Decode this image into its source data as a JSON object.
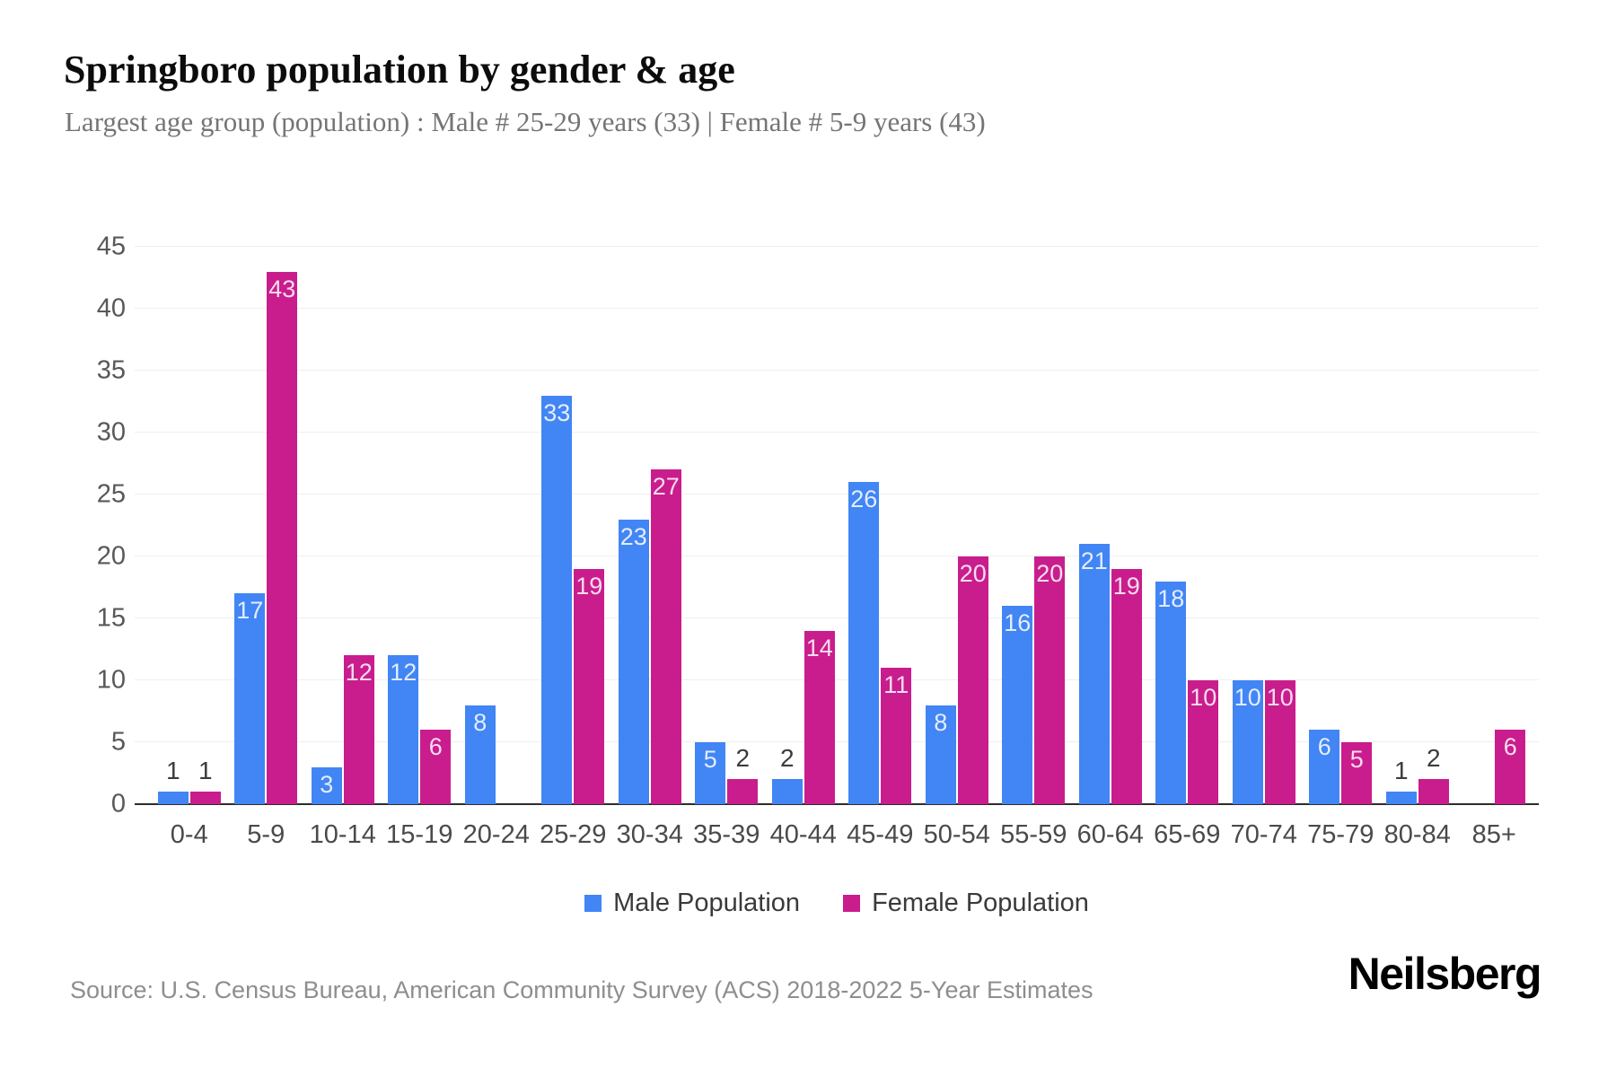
{
  "title": "Springboro population by gender & age",
  "subtitle": "Largest age group (population) : Male # 25-29 years (33) | Female # 5-9 years (43)",
  "chart_data": {
    "type": "bar",
    "title": "Springboro population by gender & age",
    "categories": [
      "0-4",
      "5-9",
      "10-14",
      "15-19",
      "20-24",
      "25-29",
      "30-34",
      "35-39",
      "40-44",
      "45-49",
      "50-54",
      "55-59",
      "60-64",
      "65-69",
      "70-74",
      "75-79",
      "80-84",
      "85+"
    ],
    "series": [
      {
        "name": "Male Population",
        "color": "#4285f4",
        "values": [
          1,
          17,
          3,
          12,
          8,
          33,
          23,
          5,
          2,
          26,
          8,
          16,
          21,
          18,
          10,
          6,
          1,
          0
        ]
      },
      {
        "name": "Female Population",
        "color": "#c91d8d",
        "values": [
          1,
          43,
          12,
          6,
          0,
          19,
          27,
          2,
          14,
          11,
          20,
          20,
          19,
          10,
          10,
          5,
          2,
          6
        ]
      }
    ],
    "xlabel": "",
    "ylabel": "",
    "ylim": [
      0,
      45
    ],
    "yticks": [
      0,
      5,
      10,
      15,
      20,
      25,
      30,
      35,
      40,
      45
    ],
    "grid": true,
    "legend_position": "bottom",
    "bar_label_rule": "values >= 3 shown in white inside bar top, smaller values shown in dark text above bar, zero values have no bar"
  },
  "legend": {
    "items": [
      {
        "label": "Male Population",
        "color": "#4285f4"
      },
      {
        "label": "Female Population",
        "color": "#c91d8d"
      }
    ]
  },
  "source": "Source: U.S. Census Bureau, American Community Survey (ACS) 2018-2022 5-Year Estimates",
  "logo": "Neilsberg",
  "colors": {
    "male": "#4285f4",
    "female": "#c91d8d",
    "gridline": "#efeff1",
    "axis": "#2d2d2d",
    "tick_text": "#585858",
    "subtitle_text": "#757575",
    "source_text": "#8e8e8e"
  }
}
